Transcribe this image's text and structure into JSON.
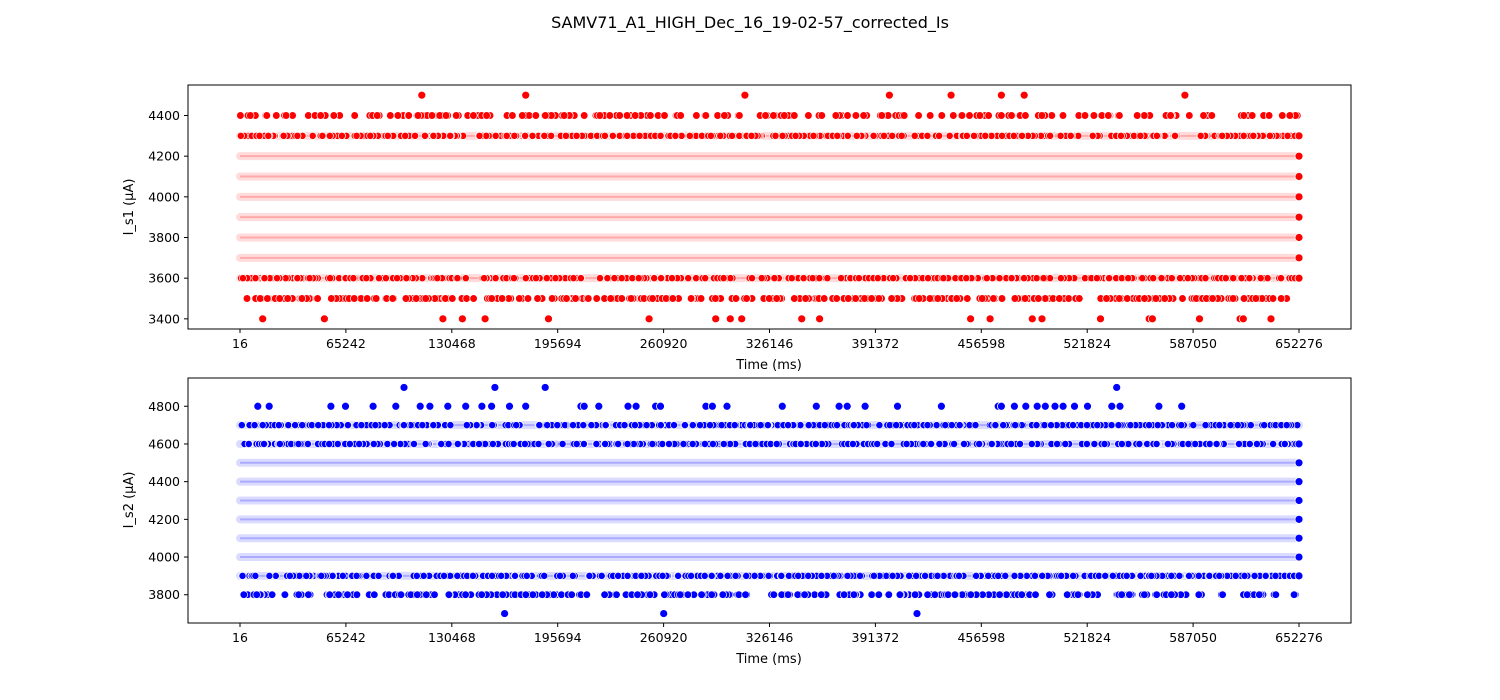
{
  "figure": {
    "title": "SAMV71_A1_HIGH_Dec_16_19-02-57_corrected_Is"
  },
  "chart_data": [
    {
      "type": "scatter",
      "xlabel": "Time (ms)",
      "ylabel": "I_s1 (µA)",
      "xlim": [
        16,
        652276
      ],
      "ylim": [
        3350,
        4550
      ],
      "xticks": [
        16,
        65242,
        130468,
        195694,
        260920,
        326146,
        391372,
        456598,
        521824,
        587050,
        652276
      ],
      "yticks": [
        3400,
        3600,
        3800,
        4000,
        4200,
        4400
      ],
      "color": "#ff0000",
      "dense_levels": [
        3600,
        3700,
        3800,
        3900,
        4000,
        4100,
        4200,
        4300
      ],
      "final_points": [
        3600,
        3700,
        3800,
        3900,
        4000,
        4100,
        4200,
        4300
      ],
      "sparse_points": [
        {
          "y": 4500,
          "x": [
            112000,
            176000,
            311000,
            400000,
            438000,
            469000,
            483000,
            582000
          ]
        },
        {
          "y": 3400,
          "x": [
            14000,
            52000,
            125000,
            137000,
            151000,
            190000,
            252000,
            293000,
            302000,
            309000,
            346000,
            357000,
            450000,
            462000,
            488000,
            494000,
            530000,
            560000,
            562000,
            591000,
            616000,
            618000,
            635000
          ]
        }
      ],
      "row_density": [
        {
          "y": 4400,
          "count": 200
        },
        {
          "y": 3500,
          "count": 330
        }
      ],
      "grid": false,
      "legend": "none"
    },
    {
      "type": "scatter",
      "xlabel": "Time (ms)",
      "ylabel": "I_s2 (µA)",
      "xlim": [
        16,
        652276
      ],
      "ylim": [
        3650,
        4950
      ],
      "xticks": [
        16,
        65242,
        130468,
        195694,
        260920,
        326146,
        391372,
        456598,
        521824,
        587050,
        652276
      ],
      "yticks": [
        3800,
        4000,
        4200,
        4400,
        4600,
        4800
      ],
      "color": "#0000ff",
      "dense_levels": [
        3900,
        4000,
        4100,
        4200,
        4300,
        4400,
        4500,
        4600,
        4700
      ],
      "final_points": [
        3900,
        4000,
        4100,
        4200,
        4300,
        4400,
        4500,
        4600
      ],
      "sparse_points": [
        {
          "y": 4900,
          "x": [
            101000,
            157000,
            188000,
            540000
          ]
        },
        {
          "y": 3700,
          "x": [
            163000,
            261000,
            417000
          ]
        },
        {
          "y": 4800,
          "x": [
            11000,
            18000,
            56000,
            65000,
            82000,
            96000,
            111000,
            117000,
            128000,
            139000,
            149000,
            155000,
            166000,
            176000,
            210000,
            212000,
            221000,
            239000,
            244000,
            256000,
            259000,
            287000,
            291000,
            300000,
            334000,
            355000,
            369000,
            374000,
            385000,
            405000,
            432000,
            467000,
            469000,
            477000,
            484000,
            491000,
            496000,
            502000,
            507000,
            514000,
            522000,
            537000,
            542000,
            566000,
            580000
          ]
        }
      ],
      "row_density": [
        {
          "y": 3800,
          "count": 300
        }
      ],
      "grid": false,
      "legend": "none"
    }
  ]
}
